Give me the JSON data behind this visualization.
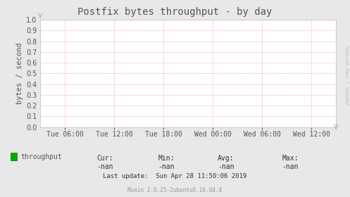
{
  "title": "Postfix bytes throughput - by day",
  "ylabel": "bytes / second",
  "ylim": [
    0.0,
    1.0
  ],
  "yticks": [
    0.0,
    0.1,
    0.2,
    0.3,
    0.4,
    0.5,
    0.6,
    0.7,
    0.8,
    0.9,
    1.0
  ],
  "xtick_labels": [
    "Tue 06:00",
    "Tue 12:00",
    "Tue 18:00",
    "Wed 00:00",
    "Wed 06:00",
    "Wed 12:00"
  ],
  "xtick_positions": [
    0.0833,
    0.25,
    0.4167,
    0.5833,
    0.75,
    0.9167
  ],
  "background_color": "#e8e8e8",
  "plot_bg_color": "#ffffff",
  "grid_color": "#ff9999",
  "grid_style": ":",
  "title_fontsize": 10,
  "axis_label_fontsize": 7.5,
  "tick_fontsize": 7,
  "legend_label": "throughput",
  "legend_color": "#00aa00",
  "cur_label": "Cur:",
  "cur_value": "-nan",
  "min_label": "Min:",
  "min_value": "-nan",
  "avg_label": "Avg:",
  "avg_value": "-nan",
  "max_label": "Max:",
  "max_value": "-nan",
  "last_update": "Last update:  Sun Apr 28 11:50:06 2019",
  "munin_version": "Munin 2.0.25-2ubuntu0.16.04.4",
  "watermark": "RRDTOOL / TOBI OETIKER",
  "spine_color": "#bbbbbb",
  "font_color": "#555555",
  "stats_font_color": "#333333"
}
